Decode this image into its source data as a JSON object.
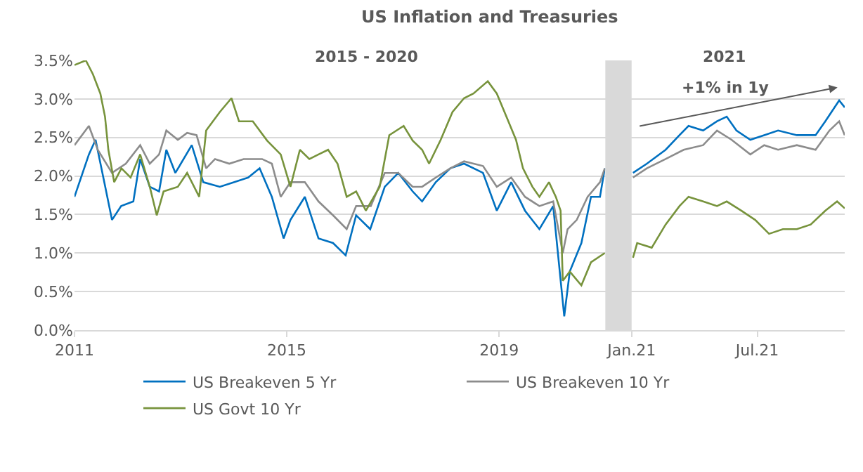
{
  "chart_data": [
    {
      "type": "line",
      "title": "US Inflation and Treasuries",
      "subtitle": "2015 - 2020",
      "xlim": [
        "2011-01-01",
        "2020-12-31"
      ],
      "xticks": [
        "2011",
        "2015",
        "2019"
      ],
      "ylim": [
        0,
        3.5
      ],
      "yticks": [
        {
          "value": 0,
          "label": "0.0%"
        },
        {
          "value": 0.5,
          "label": "0.5%"
        },
        {
          "value": 1,
          "label": "1.0%"
        },
        {
          "value": 1.5,
          "label": "1.5%"
        },
        {
          "value": 2,
          "label": "2.0%"
        },
        {
          "value": 2.5,
          "label": "2.5%"
        },
        {
          "value": 3,
          "label": "3.0%"
        },
        {
          "value": 3.5,
          "label": "3.5%"
        }
      ],
      "grid": "y",
      "legend": "bottom",
      "series": [
        {
          "name": "US Breakeven 5 Yr",
          "color": "#0070c0",
          "x": [
            "2011-01-01",
            "2011-04-10",
            "2011-05-26",
            "2011-07-12",
            "2011-09-16",
            "2011-11-18",
            "2012-02-10",
            "2012-03-28",
            "2012-06-02",
            "2012-08-05",
            "2012-09-24",
            "2012-11-25",
            "2013-03-18",
            "2013-06-05",
            "2013-09-27",
            "2014-01-05",
            "2014-04-10",
            "2014-06-28",
            "2014-09-20",
            "2014-12-10",
            "2015-01-26",
            "2015-05-05",
            "2015-08-07",
            "2015-11-15",
            "2016-02-10",
            "2016-04-22",
            "2016-07-28",
            "2016-11-05",
            "2017-02-06",
            "2017-05-16",
            "2017-07-20",
            "2017-10-22",
            "2018-01-30",
            "2018-05-05",
            "2018-09-12",
            "2018-12-16",
            "2019-03-25",
            "2019-06-28",
            "2019-10-05",
            "2020-01-08",
            "2020-03-24",
            "2020-05-01",
            "2020-07-20",
            "2020-09-24",
            "2020-11-25",
            "2020-12-28"
          ],
          "values": [
            1.73,
            2.28,
            2.47,
            2.04,
            1.43,
            1.61,
            1.67,
            2.22,
            1.86,
            1.8,
            2.34,
            2.04,
            2.4,
            1.92,
            1.86,
            1.92,
            1.98,
            2.1,
            1.73,
            1.19,
            1.43,
            1.73,
            1.19,
            1.13,
            0.97,
            1.49,
            1.31,
            1.86,
            2.04,
            1.8,
            1.67,
            1.92,
            2.1,
            2.16,
            2.04,
            1.55,
            1.92,
            1.55,
            1.31,
            1.61,
            0.18,
            0.76,
            1.13,
            1.73,
            1.73,
            2.1
          ]
        },
        {
          "name": "US Breakeven 10 Yr",
          "color": "#8c8c8c",
          "x": [
            "2011-01-01",
            "2011-04-10",
            "2011-06-10",
            "2011-09-16",
            "2011-12-20",
            "2012-03-28",
            "2012-06-02",
            "2012-08-05",
            "2012-09-24",
            "2012-12-12",
            "2013-02-14",
            "2013-04-20",
            "2013-06-25",
            "2013-08-25",
            "2013-12-01",
            "2014-03-10",
            "2014-07-15",
            "2014-09-20",
            "2014-11-20",
            "2015-01-26",
            "2015-05-05",
            "2015-08-07",
            "2015-11-15",
            "2016-02-17",
            "2016-04-22",
            "2016-08-01",
            "2016-11-05",
            "2017-02-06",
            "2017-05-16",
            "2017-07-20",
            "2017-10-22",
            "2018-01-30",
            "2018-05-05",
            "2018-09-12",
            "2018-12-16",
            "2019-03-25",
            "2019-06-28",
            "2019-10-05",
            "2020-01-08",
            "2020-03-14",
            "2020-04-16",
            "2020-06-18",
            "2020-09-01",
            "2020-11-25",
            "2020-12-28"
          ],
          "values": [
            2.4,
            2.65,
            2.34,
            2.04,
            2.16,
            2.4,
            2.16,
            2.28,
            2.59,
            2.47,
            2.56,
            2.53,
            2.1,
            2.22,
            2.16,
            2.22,
            2.22,
            2.16,
            1.73,
            1.92,
            1.92,
            1.67,
            1.49,
            1.31,
            1.61,
            1.61,
            2.04,
            2.04,
            1.86,
            1.86,
            1.98,
            2.1,
            2.19,
            2.13,
            1.86,
            1.98,
            1.73,
            1.61,
            1.67,
            1.0,
            1.31,
            1.43,
            1.73,
            1.92,
            2.1
          ]
        },
        {
          "name": "US Govt 10 Yr",
          "color": "#77933c",
          "x": [
            "2011-01-01",
            "2011-03-20",
            "2011-05-08",
            "2011-06-28",
            "2011-07-30",
            "2011-08-22",
            "2011-10-01",
            "2011-11-20",
            "2012-01-22",
            "2012-03-28",
            "2012-06-02",
            "2012-07-20",
            "2012-09-05",
            "2012-12-12",
            "2013-02-14",
            "2013-05-08",
            "2013-06-25",
            "2013-09-27",
            "2013-12-16",
            "2014-02-06",
            "2014-05-12",
            "2014-08-18",
            "2014-11-20",
            "2015-01-26",
            "2015-04-01",
            "2015-06-05",
            "2015-08-07",
            "2015-10-12",
            "2015-12-16",
            "2016-02-17",
            "2016-04-22",
            "2016-06-28",
            "2016-10-01",
            "2016-12-06",
            "2017-03-15",
            "2017-05-16",
            "2017-07-20",
            "2017-09-06",
            "2017-11-25",
            "2018-02-14",
            "2018-05-05",
            "2018-07-08",
            "2018-10-15",
            "2018-12-16",
            "2019-02-20",
            "2019-04-27",
            "2019-06-14",
            "2019-08-18",
            "2019-10-05",
            "2019-12-10",
            "2020-01-26",
            "2020-02-28",
            "2020-03-14",
            "2020-05-01",
            "2020-07-20",
            "2020-09-24",
            "2020-12-28"
          ],
          "values": [
            3.44,
            3.5,
            3.32,
            3.07,
            2.77,
            2.34,
            1.92,
            2.1,
            1.98,
            2.28,
            1.86,
            1.49,
            1.8,
            1.86,
            2.04,
            1.73,
            2.59,
            2.83,
            3.01,
            2.71,
            2.71,
            2.46,
            2.28,
            1.86,
            2.34,
            2.22,
            2.28,
            2.34,
            2.16,
            1.73,
            1.8,
            1.55,
            1.86,
            2.53,
            2.65,
            2.46,
            2.34,
            2.16,
            2.47,
            2.83,
            3.01,
            3.07,
            3.23,
            3.07,
            2.77,
            2.47,
            2.1,
            1.86,
            1.73,
            1.92,
            1.73,
            1.55,
            0.64,
            0.76,
            0.58,
            0.88,
            1.0
          ]
        }
      ]
    },
    {
      "type": "line",
      "subtitle": "2021",
      "xlim": [
        "2020-11-24",
        "2021-11-04"
      ],
      "xticks": [
        {
          "value": "2021-01-01",
          "label": "Jan.21"
        },
        {
          "value": "2021-07-01",
          "label": "Jul.21"
        }
      ],
      "ylim": [
        0,
        3.5
      ],
      "yticks": [
        0,
        0.5,
        1,
        1.5,
        2,
        2.5,
        3,
        3.5
      ],
      "tick_labels": "x",
      "grid": "y",
      "bands": [
        {
          "axis": "x",
          "from": "2020-11-24",
          "to": "2021-01-01",
          "color": "#d9d9d9"
        }
      ],
      "annotations": [
        "+1% in 1y"
      ],
      "series": [
        {
          "color": "#0070c0",
          "x": [
            "2021-01-03",
            "2021-01-23",
            "2021-02-19",
            "2021-03-11",
            "2021-03-24",
            "2021-04-14",
            "2021-05-04",
            "2021-05-18",
            "2021-06-01",
            "2021-06-21",
            "2021-07-11",
            "2021-07-31",
            "2021-08-27",
            "2021-09-23",
            "2021-10-07",
            "2021-10-27",
            "2021-11-04"
          ],
          "values": [
            2.04,
            2.16,
            2.34,
            2.53,
            2.65,
            2.59,
            2.71,
            2.77,
            2.59,
            2.47,
            2.53,
            2.59,
            2.53,
            2.53,
            2.71,
            2.98,
            2.89
          ]
        },
        {
          "color": "#8c8c8c",
          "x": [
            "2021-01-03",
            "2021-01-23",
            "2021-02-19",
            "2021-03-17",
            "2021-04-14",
            "2021-05-04",
            "2021-05-25",
            "2021-06-21",
            "2021-07-11",
            "2021-07-31",
            "2021-08-27",
            "2021-09-23",
            "2021-10-13",
            "2021-10-27",
            "2021-11-04"
          ],
          "values": [
            1.98,
            2.1,
            2.22,
            2.34,
            2.4,
            2.59,
            2.47,
            2.28,
            2.4,
            2.34,
            2.4,
            2.34,
            2.59,
            2.71,
            2.53
          ]
        },
        {
          "color": "#77933c",
          "x": [
            "2021-01-03",
            "2021-01-09",
            "2021-01-30",
            "2021-02-19",
            "2021-03-11",
            "2021-03-24",
            "2021-04-14",
            "2021-05-04",
            "2021-05-18",
            "2021-06-08",
            "2021-06-28",
            "2021-07-18",
            "2021-08-07",
            "2021-08-27",
            "2021-09-16",
            "2021-10-07",
            "2021-10-24",
            "2021-11-04"
          ],
          "values": [
            0.94,
            1.13,
            1.07,
            1.37,
            1.61,
            1.73,
            1.67,
            1.61,
            1.67,
            1.55,
            1.43,
            1.25,
            1.31,
            1.31,
            1.37,
            1.55,
            1.67,
            1.58
          ]
        }
      ]
    }
  ]
}
